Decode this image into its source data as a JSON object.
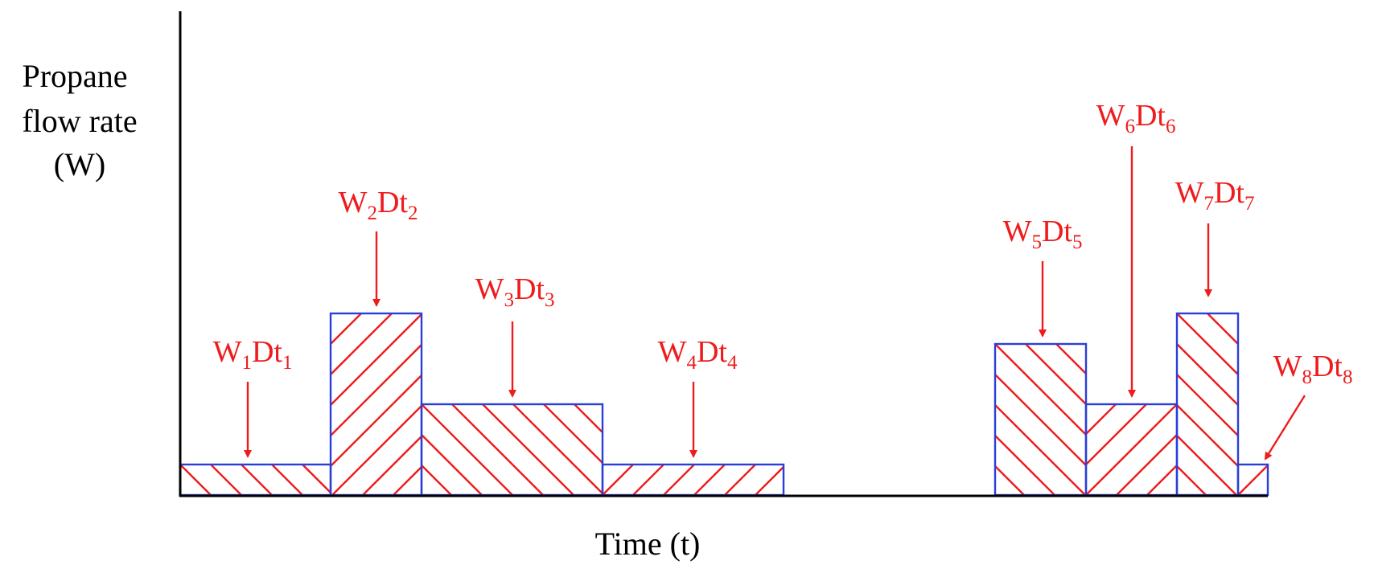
{
  "diagram": {
    "y_axis_label": [
      "Propane",
      "flow rate",
      "(W)"
    ],
    "x_axis_label": "Time (t)",
    "colors": {
      "axis": "#000000",
      "bar_outline": "#2b3fd6",
      "hatch": "#ee1c1c",
      "annotation": "#ee1c1c"
    },
    "terms": [
      {
        "W": "W",
        "i": "1",
        "D": "Dt",
        "j": "1"
      },
      {
        "W": "W",
        "i": "2",
        "D": "Dt",
        "j": "2"
      },
      {
        "W": "W",
        "i": "3",
        "D": "Dt",
        "j": "3"
      },
      {
        "W": "W",
        "i": "4",
        "D": "Dt",
        "j": "4"
      },
      {
        "W": "W",
        "i": "5",
        "D": "Dt",
        "j": "5"
      },
      {
        "W": "W",
        "i": "6",
        "D": "Dt",
        "j": "6"
      },
      {
        "W": "W",
        "i": "7",
        "D": "Dt",
        "j": "7"
      },
      {
        "W": "W",
        "i": "8",
        "D": "Dt",
        "j": "8"
      }
    ]
  }
}
